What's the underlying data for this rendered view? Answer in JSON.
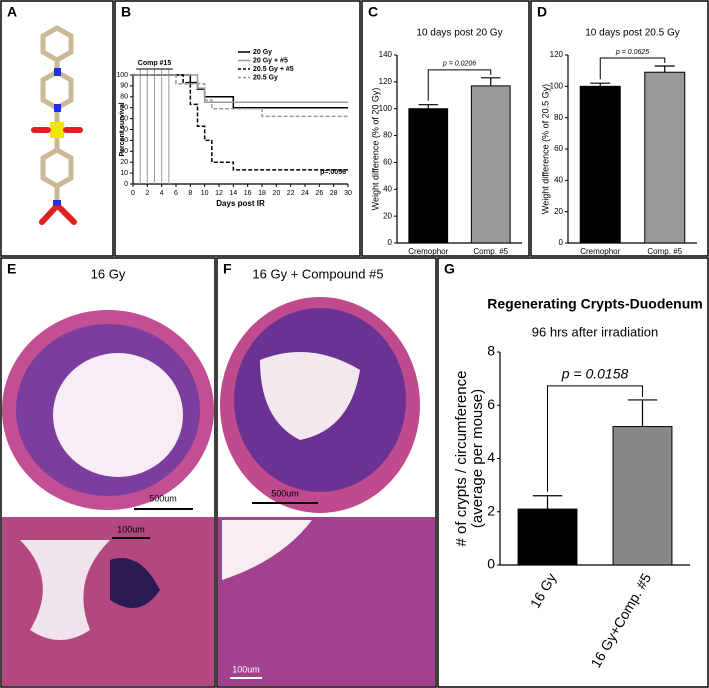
{
  "panel_labels": [
    "A",
    "B",
    "C",
    "D",
    "E",
    "F",
    "G"
  ],
  "images": {
    "e": {
      "title": "16 Gy",
      "scale_bars": [
        "500um",
        "100um"
      ]
    },
    "f": {
      "title": "16 Gy + Compound #5",
      "scale_bars": [
        "500um",
        "100um"
      ]
    }
  },
  "chart_data": [
    {
      "type": "line",
      "xlabel": "Days post IR",
      "ylabel": "Percent survival",
      "xlim": [
        0,
        30
      ],
      "xticks": [
        0,
        2,
        4,
        6,
        8,
        10,
        12,
        14,
        16,
        18,
        20,
        22,
        24,
        26,
        28,
        30
      ],
      "ylim": [
        0,
        100
      ],
      "yticks": [
        0,
        10,
        20,
        30,
        40,
        50,
        60,
        70,
        80,
        90,
        100
      ],
      "annotation": "Comp #15",
      "dosing_days": [
        1,
        2,
        3,
        4,
        5
      ],
      "p_label": "p=.0056",
      "series": [
        {
          "name": "20 Gy",
          "color": "#000000",
          "style": "solid",
          "x": [
            0,
            8,
            9,
            10,
            14,
            30
          ],
          "values": [
            100,
            93,
            87,
            80,
            70,
            70
          ]
        },
        {
          "name": "20 Gy + #5",
          "color": "#999999",
          "style": "solid",
          "x": [
            0,
            9,
            10,
            30
          ],
          "values": [
            100,
            88,
            75,
            75
          ]
        },
        {
          "name": "20.5 Gy + #5",
          "color": "#000000",
          "style": "dashed",
          "x": [
            0,
            7,
            8,
            9,
            10,
            11,
            14,
            30
          ],
          "values": [
            100,
            93,
            73,
            53,
            40,
            20,
            13,
            13
          ]
        },
        {
          "name": "20.5 Gy",
          "color": "#999999",
          "style": "dashed",
          "x": [
            0,
            6,
            10,
            11,
            18,
            30
          ],
          "values": [
            100,
            92,
            77,
            69,
            62,
            62
          ]
        }
      ]
    },
    {
      "type": "bar",
      "title": "10 days post 20 Gy",
      "ylabel": [
        "Weight difference (% of 20 Gy)"
      ],
      "categories": [
        "Cremophor",
        "Comp. #5"
      ],
      "values": [
        100,
        117
      ],
      "errors": [
        3,
        6
      ],
      "colors": [
        "#000000",
        "#999999"
      ],
      "ylim": [
        0,
        140
      ],
      "yticks": [
        0,
        20,
        40,
        60,
        80,
        100,
        120,
        140
      ],
      "p_label": "p = 0.0206"
    },
    {
      "type": "bar",
      "title": "10 days post 20.5 Gy",
      "ylabel": [
        "Weight difference (% of 20.5 Gy)"
      ],
      "categories": [
        "Cremophor",
        "Comp. #5"
      ],
      "values": [
        100,
        109
      ],
      "errors": [
        2,
        4
      ],
      "colors": [
        "#000000",
        "#999999"
      ],
      "ylim": [
        0,
        120
      ],
      "yticks": [
        0,
        20,
        40,
        60,
        80,
        100,
        120
      ],
      "p_label": "p = 0.0625"
    },
    {
      "type": "bar",
      "title": "Regenerating Crypts-Duodenum",
      "subtitle": "96 hrs after irradiation",
      "ylabel": [
        "# of crypts / circumference",
        "(average per mouse)"
      ],
      "categories": [
        "16 Gy",
        "16 Gy+Comp. #5"
      ],
      "values": [
        2.1,
        5.2
      ],
      "errors": [
        0.5,
        1.0
      ],
      "colors": [
        "#000000",
        "#888888"
      ],
      "ylim": [
        0,
        8
      ],
      "yticks": [
        0,
        2,
        4,
        6,
        8
      ],
      "p_label": "p = 0.0158"
    }
  ]
}
